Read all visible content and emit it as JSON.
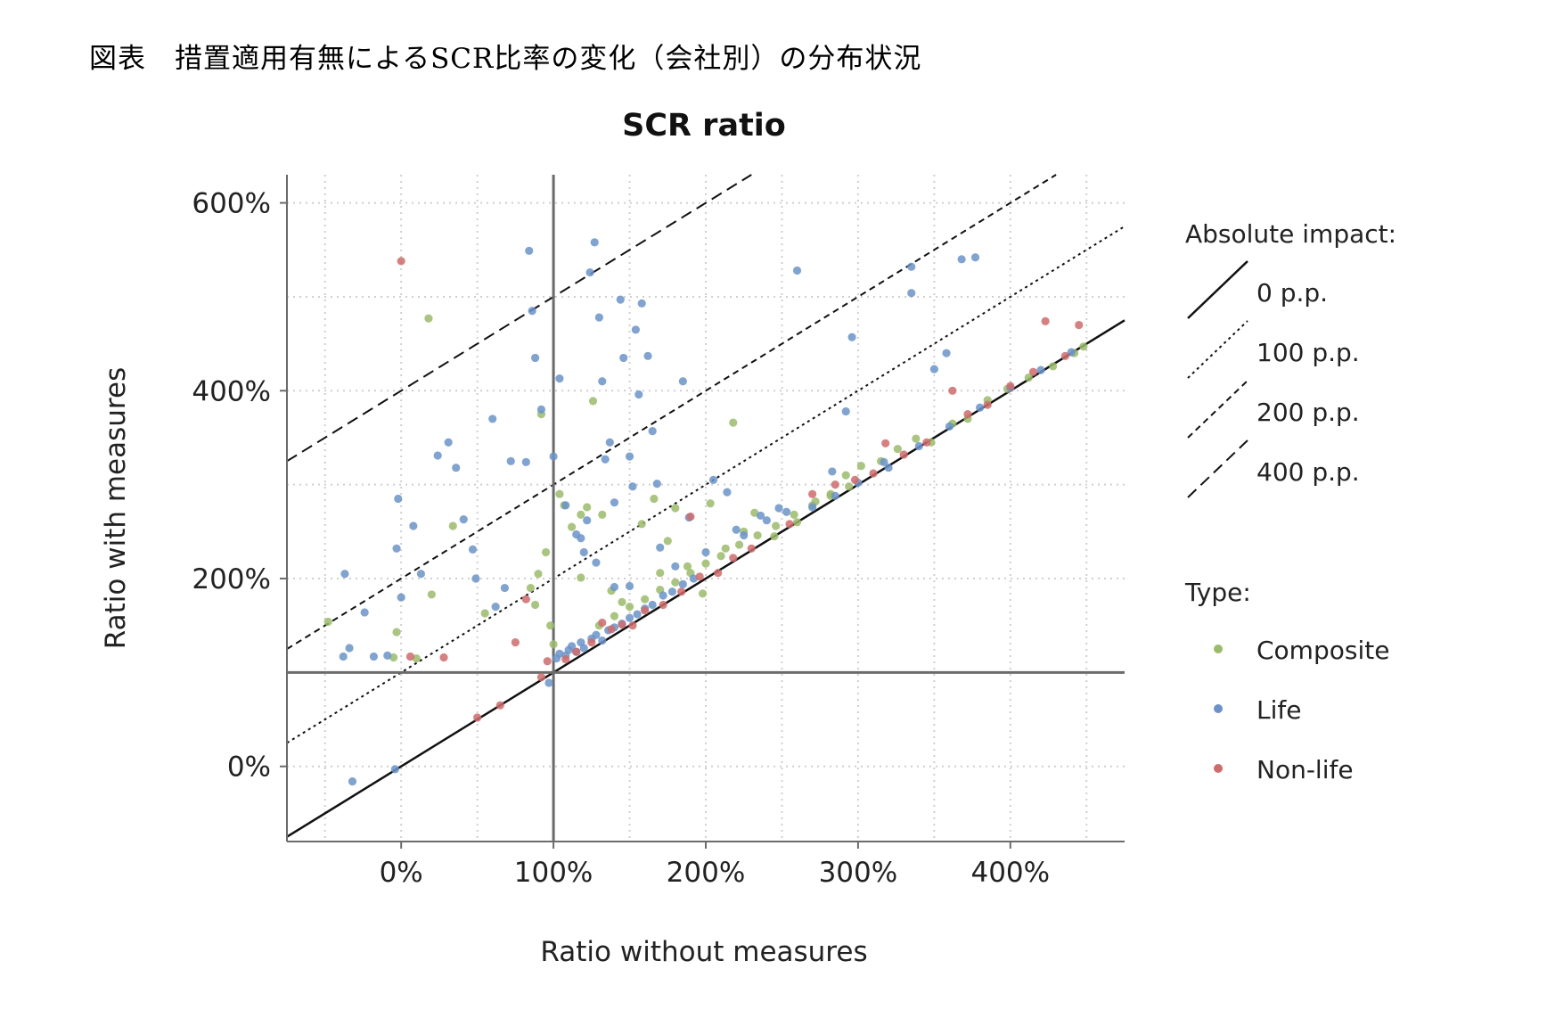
{
  "caption": "図表　措置適用有無によるSCR比率の変化（会社別）の分布状況",
  "chart_data": {
    "type": "scatter",
    "title": "SCR ratio",
    "xlabel": "Ratio without measures",
    "ylabel": "Ratio with measures",
    "xlim": [
      -75,
      475
    ],
    "ylim": [
      -80,
      630
    ],
    "x_ticks": [
      0,
      100,
      200,
      300,
      400
    ],
    "x_tick_labels": [
      "0%",
      "100%",
      "200%",
      "300%",
      "400%"
    ],
    "y_ticks": [
      0,
      200,
      400,
      600
    ],
    "y_tick_labels": [
      "0%",
      "200%",
      "400%",
      "600%"
    ],
    "grid": true,
    "reference_lines": [
      {
        "label": "0 p.p.",
        "offset": 0,
        "style": "solid"
      },
      {
        "label": "100 p.p.",
        "offset": 100,
        "style": "dotted"
      },
      {
        "label": "200 p.p.",
        "offset": 200,
        "style": "dashed"
      },
      {
        "label": "400 p.p.",
        "offset": 400,
        "style": "longdash"
      }
    ],
    "threshold": {
      "x": 100,
      "y": 100
    },
    "legend_impact_title": "Absolute impact:",
    "legend_type_title": "Type:",
    "legend_placement": "right",
    "colors": {
      "Composite": "#9bbb6b",
      "Life": "#6b93c8",
      "Non-life": "#cf6b6b",
      "axis": "#6b6b6b",
      "grid": "#cfcfcf"
    },
    "series": [
      {
        "name": "Composite",
        "points": [
          [
            -48,
            154
          ],
          [
            18,
            477
          ],
          [
            -3,
            143
          ],
          [
            -5,
            116
          ],
          [
            10,
            115
          ],
          [
            20,
            183
          ],
          [
            34,
            256
          ],
          [
            55,
            163
          ],
          [
            85,
            190
          ],
          [
            88,
            172
          ],
          [
            90,
            205
          ],
          [
            92,
            375
          ],
          [
            95,
            228
          ],
          [
            98,
            150
          ],
          [
            100,
            130
          ],
          [
            104,
            290
          ],
          [
            107,
            278
          ],
          [
            112,
            255
          ],
          [
            118,
            201
          ],
          [
            122,
            276
          ],
          [
            126,
            389
          ],
          [
            132,
            268
          ],
          [
            118,
            268
          ],
          [
            138,
            187
          ],
          [
            145,
            175
          ],
          [
            158,
            258
          ],
          [
            166,
            285
          ],
          [
            170,
            206
          ],
          [
            175,
            240
          ],
          [
            180,
            275
          ],
          [
            188,
            213
          ],
          [
            198,
            184
          ],
          [
            203,
            280
          ],
          [
            213,
            232
          ],
          [
            218,
            366
          ],
          [
            225,
            250
          ],
          [
            232,
            270
          ],
          [
            245,
            245
          ],
          [
            260,
            260
          ],
          [
            272,
            282
          ],
          [
            282,
            290
          ],
          [
            292,
            310
          ],
          [
            302,
            320
          ],
          [
            315,
            325
          ],
          [
            326,
            338
          ],
          [
            338,
            349
          ],
          [
            348,
            345
          ],
          [
            362,
            365
          ],
          [
            372,
            370
          ],
          [
            385,
            390
          ],
          [
            398,
            402
          ],
          [
            412,
            414
          ],
          [
            428,
            426
          ],
          [
            442,
            440
          ],
          [
            448,
            447
          ],
          [
            130,
            150
          ],
          [
            140,
            160
          ],
          [
            150,
            170
          ],
          [
            160,
            178
          ],
          [
            170,
            188
          ],
          [
            180,
            196
          ],
          [
            190,
            206
          ],
          [
            200,
            216
          ],
          [
            210,
            224
          ],
          [
            222,
            236
          ],
          [
            234,
            246
          ],
          [
            246,
            256
          ],
          [
            258,
            268
          ],
          [
            270,
            278
          ],
          [
            282,
            288
          ],
          [
            294,
            298
          ]
        ]
      },
      {
        "name": "Life",
        "points": [
          [
            -37,
            205
          ],
          [
            -38,
            117
          ],
          [
            -34,
            126
          ],
          [
            -24,
            164
          ],
          [
            -18,
            117
          ],
          [
            -9,
            118
          ],
          [
            -3,
            232
          ],
          [
            -2,
            285
          ],
          [
            0,
            180
          ],
          [
            8,
            256
          ],
          [
            13,
            205
          ],
          [
            24,
            331
          ],
          [
            31,
            345
          ],
          [
            36,
            318
          ],
          [
            41,
            263
          ],
          [
            47,
            231
          ],
          [
            49,
            200
          ],
          [
            62,
            170
          ],
          [
            60,
            370
          ],
          [
            68,
            190
          ],
          [
            72,
            325
          ],
          [
            82,
            324
          ],
          [
            84,
            549
          ],
          [
            86,
            485
          ],
          [
            88,
            435
          ],
          [
            92,
            380
          ],
          [
            100,
            330
          ],
          [
            104,
            413
          ],
          [
            108,
            278
          ],
          [
            115,
            247
          ],
          [
            120,
            228
          ],
          [
            124,
            526
          ],
          [
            127,
            558
          ],
          [
            130,
            478
          ],
          [
            132,
            410
          ],
          [
            134,
            327
          ],
          [
            137,
            345
          ],
          [
            140,
            281
          ],
          [
            144,
            497
          ],
          [
            146,
            435
          ],
          [
            150,
            330
          ],
          [
            152,
            298
          ],
          [
            154,
            465
          ],
          [
            156,
            396
          ],
          [
            158,
            493
          ],
          [
            162,
            437
          ],
          [
            165,
            357
          ],
          [
            168,
            301
          ],
          [
            185,
            410
          ],
          [
            189,
            265
          ],
          [
            205,
            305
          ],
          [
            214,
            292
          ],
          [
            225,
            246
          ],
          [
            236,
            267
          ],
          [
            248,
            275
          ],
          [
            260,
            528
          ],
          [
            283,
            314
          ],
          [
            292,
            378
          ],
          [
            296,
            457
          ],
          [
            317,
            324
          ],
          [
            335,
            532
          ],
          [
            335,
            504
          ],
          [
            350,
            423
          ],
          [
            358,
            440
          ],
          [
            368,
            540
          ],
          [
            377,
            542
          ],
          [
            97,
            89
          ],
          [
            -32,
            -16
          ],
          [
            -4,
            -3
          ],
          [
            118,
            243
          ],
          [
            122,
            262
          ],
          [
            128,
            217
          ],
          [
            140,
            191
          ],
          [
            150,
            192
          ],
          [
            170,
            233
          ],
          [
            180,
            213
          ],
          [
            200,
            228
          ],
          [
            220,
            252
          ],
          [
            240,
            262
          ],
          [
            253,
            271
          ],
          [
            270,
            276
          ],
          [
            285,
            288
          ],
          [
            300,
            302
          ],
          [
            320,
            318
          ],
          [
            340,
            341
          ],
          [
            360,
            362
          ],
          [
            380,
            382
          ],
          [
            400,
            403
          ],
          [
            420,
            422
          ],
          [
            440,
            441
          ],
          [
            102,
            115
          ],
          [
            104,
            120
          ],
          [
            108,
            118
          ],
          [
            110,
            124
          ],
          [
            112,
            128
          ],
          [
            115,
            122
          ],
          [
            118,
            132
          ],
          [
            120,
            126
          ],
          [
            125,
            136
          ],
          [
            128,
            140
          ],
          [
            132,
            134
          ],
          [
            136,
            145
          ],
          [
            140,
            148
          ],
          [
            145,
            152
          ],
          [
            150,
            158
          ],
          [
            155,
            162
          ],
          [
            160,
            168
          ],
          [
            165,
            172
          ],
          [
            172,
            182
          ],
          [
            178,
            186
          ],
          [
            185,
            194
          ],
          [
            192,
            200
          ]
        ]
      },
      {
        "name": "Non-life",
        "points": [
          [
            0,
            538
          ],
          [
            6,
            117
          ],
          [
            28,
            116
          ],
          [
            50,
            52
          ],
          [
            65,
            65
          ],
          [
            75,
            132
          ],
          [
            82,
            178
          ],
          [
            92,
            95
          ],
          [
            96,
            112
          ],
          [
            108,
            114
          ],
          [
            115,
            122
          ],
          [
            125,
            132
          ],
          [
            132,
            153
          ],
          [
            138,
            146
          ],
          [
            145,
            151
          ],
          [
            152,
            150
          ],
          [
            160,
            166
          ],
          [
            172,
            172
          ],
          [
            184,
            186
          ],
          [
            190,
            266
          ],
          [
            196,
            202
          ],
          [
            208,
            206
          ],
          [
            218,
            222
          ],
          [
            230,
            232
          ],
          [
            255,
            258
          ],
          [
            270,
            290
          ],
          [
            285,
            300
          ],
          [
            298,
            305
          ],
          [
            310,
            312
          ],
          [
            318,
            344
          ],
          [
            330,
            332
          ],
          [
            345,
            345
          ],
          [
            362,
            400
          ],
          [
            372,
            375
          ],
          [
            385,
            385
          ],
          [
            400,
            405
          ],
          [
            415,
            420
          ],
          [
            423,
            474
          ],
          [
            445,
            470
          ],
          [
            436,
            437
          ]
        ]
      }
    ]
  }
}
